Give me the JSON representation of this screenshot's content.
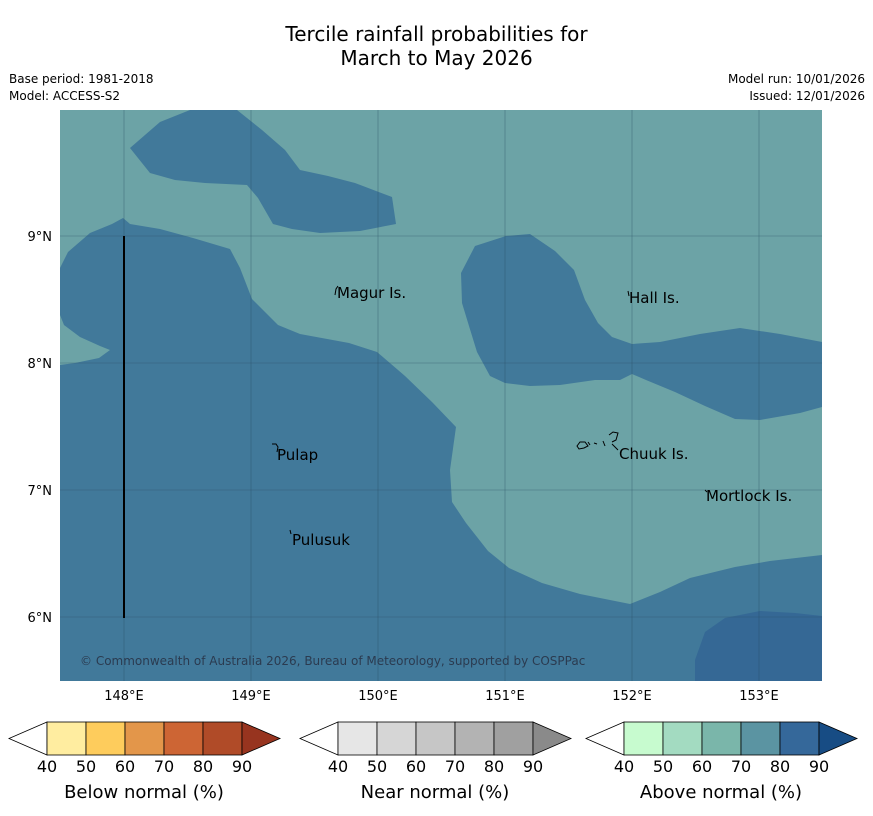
{
  "title_line1": "Tercile rainfall probabilities for",
  "title_line2": "March to May 2026",
  "meta": {
    "base_period": "Base period: 1981-2018",
    "model": "Model: ACCESS-S2",
    "model_run": "Model run: 10/01/2026",
    "issued": "Issued: 12/01/2026"
  },
  "places": {
    "magur": "Magur Is.",
    "hall": "Hall Is.",
    "pulap": "Pulap",
    "chuuk": "Chuuk Is.",
    "mortlock": "Mortlock Is.",
    "pulusuk": "Pulusuk"
  },
  "axes": {
    "lon_labels": [
      "148°E",
      "149°E",
      "150°E",
      "151°E",
      "152°E",
      "153°E"
    ],
    "lat_labels": [
      "9°N",
      "8°N",
      "7°N",
      "6°N"
    ]
  },
  "copyright": "© Commonwealth of Australia 2026, Bureau of Meteorology, supported by COSPPac",
  "colorbars": [
    {
      "label": "Below normal (%)",
      "ticks": [
        "40",
        "50",
        "60",
        "70",
        "80",
        "90"
      ],
      "colors": [
        "#ffffff",
        "#ffeda0",
        "#fecc5c",
        "#e3964a",
        "#cd6534",
        "#b04b28",
        "#97341f"
      ]
    },
    {
      "label": "Near normal (%)",
      "ticks": [
        "40",
        "50",
        "60",
        "70",
        "80",
        "90"
      ],
      "colors": [
        "#ffffff",
        "#e6e6e6",
        "#d6d6d6",
        "#c6c6c6",
        "#b3b3b3",
        "#a0a0a0",
        "#8a8a8a"
      ]
    },
    {
      "label": "Above normal (%)",
      "ticks": [
        "40",
        "50",
        "60",
        "70",
        "80",
        "90"
      ],
      "colors": [
        "#ffffff",
        "#c7fbcf",
        "#a3dbc1",
        "#7ab6aa",
        "#5b94a2",
        "#35689a",
        "#174c84"
      ]
    }
  ],
  "fill_colors": {
    "near_normal_zone": "#6ca3a6",
    "above_70_zone": "#41799a",
    "above_80_zone": "#356895"
  }
}
